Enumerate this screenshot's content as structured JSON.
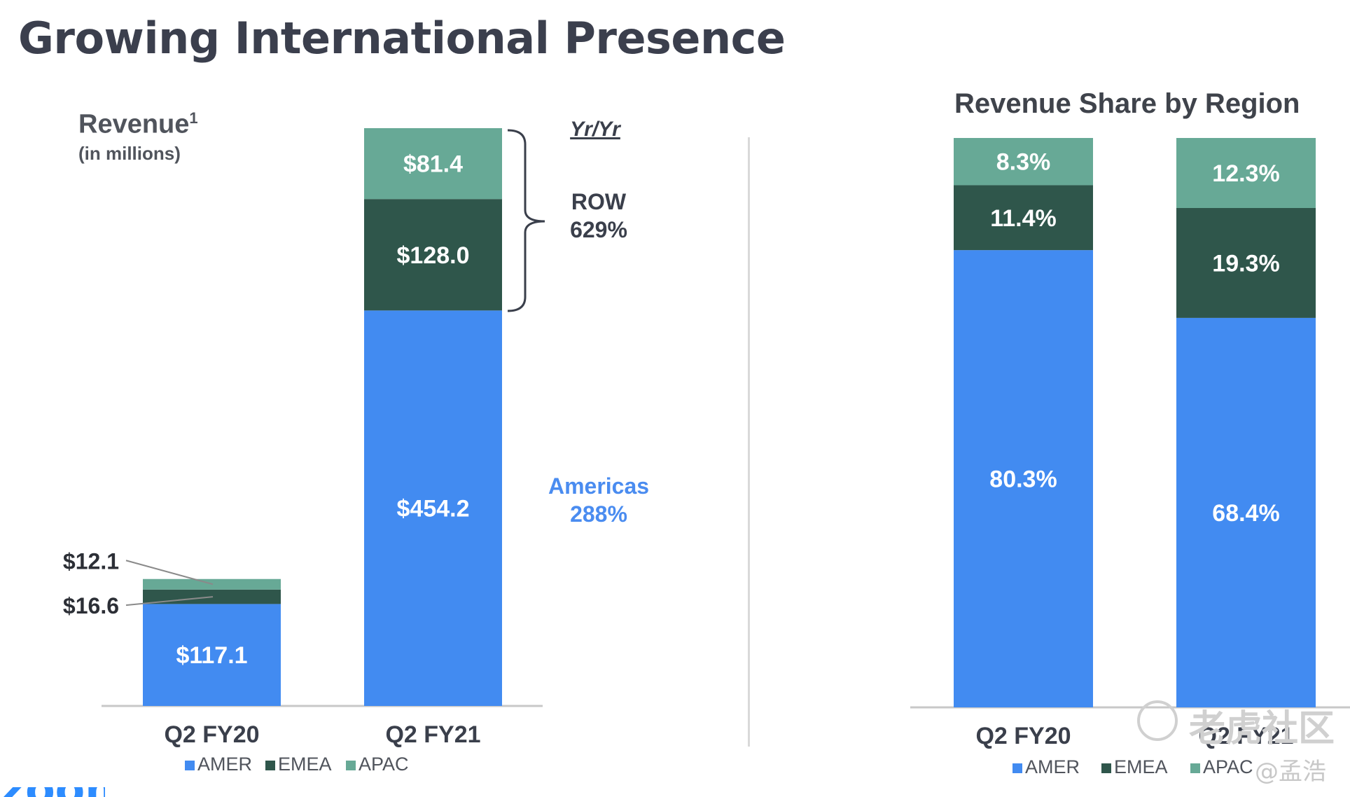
{
  "page_title": "Growing International Presence",
  "colors": {
    "amer": "#428bf1",
    "emea": "#2f564b",
    "apac": "#67a996",
    "text": "#3a3f4b",
    "americas_note": "#4a8cf0"
  },
  "revenue_chart_header": {
    "title": "Revenue",
    "footnote_mark": "1",
    "subtitle": "(in millions)"
  },
  "share_chart_header": {
    "title": "Revenue Share by Region"
  },
  "yoy": {
    "heading": "Yr/Yr",
    "row_label": "ROW",
    "row_value": "629%",
    "americas_label": "Americas",
    "americas_value": "288%"
  },
  "chart_data": [
    {
      "type": "bar",
      "stacked": true,
      "title": "Revenue (in millions)",
      "categories": [
        "Q2 FY20",
        "Q2 FY21"
      ],
      "series": [
        {
          "name": "AMER",
          "values": [
            117.1,
            454.2
          ],
          "labels": [
            "$117.1",
            "$454.2"
          ]
        },
        {
          "name": "EMEA",
          "values": [
            16.6,
            128.0
          ],
          "labels": [
            "$16.6",
            "$128.0"
          ]
        },
        {
          "name": "APAC",
          "values": [
            12.1,
            81.4
          ],
          "labels": [
            "$12.1",
            "$81.4"
          ]
        }
      ],
      "ylim": [
        0,
        663.6
      ],
      "grid": false,
      "legend": {
        "position": "bottom",
        "entries": [
          "AMER",
          "EMEA",
          "APAC"
        ]
      }
    },
    {
      "type": "bar",
      "stacked": true,
      "title": "Revenue Share by Region",
      "categories": [
        "Q2 FY20",
        "Q2 FY21"
      ],
      "series": [
        {
          "name": "AMER",
          "values": [
            80.3,
            68.4
          ],
          "labels": [
            "80.3%",
            "68.4%"
          ]
        },
        {
          "name": "EMEA",
          "values": [
            11.4,
            19.3
          ],
          "labels": [
            "11.4%",
            "19.3%"
          ]
        },
        {
          "name": "APAC",
          "values": [
            8.3,
            12.3
          ],
          "labels": [
            "8.3%",
            "12.3%"
          ]
        }
      ],
      "ylim": [
        0,
        100
      ],
      "grid": false,
      "legend": {
        "position": "bottom",
        "entries": [
          "AMER",
          "EMEA",
          "APAC"
        ]
      }
    }
  ],
  "watermark": {
    "text": "老虎社区",
    "user": "@孟浩"
  },
  "logo": {
    "text": "zoom"
  }
}
